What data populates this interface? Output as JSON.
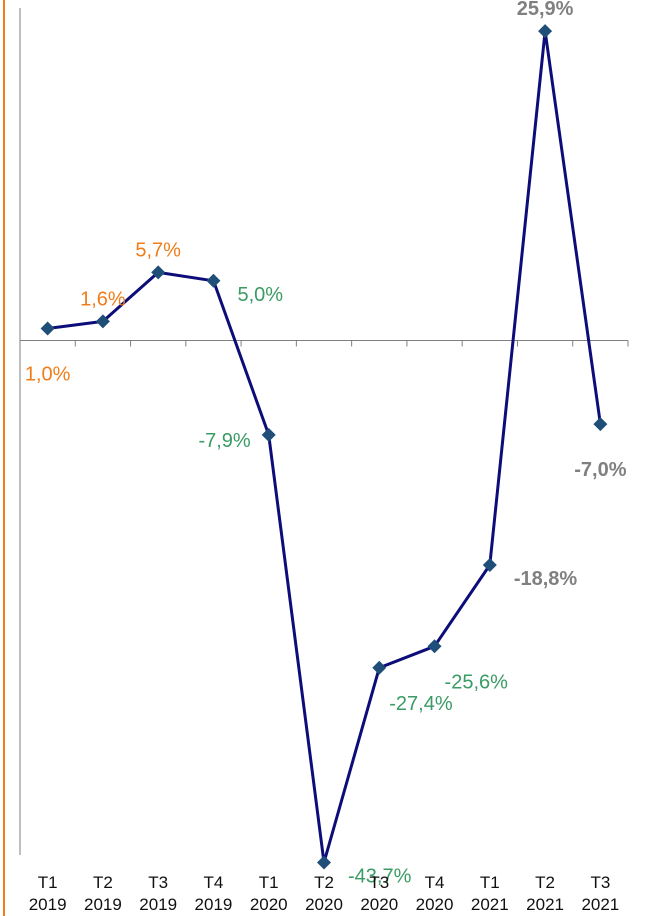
{
  "chart_data": {
    "type": "line",
    "categories": [
      [
        "T1",
        "2019"
      ],
      [
        "T2",
        "2019"
      ],
      [
        "T3",
        "2019"
      ],
      [
        "T4",
        "2019"
      ],
      [
        "T1",
        "2020"
      ],
      [
        "T2",
        "2020"
      ],
      [
        "T3",
        "2020"
      ],
      [
        "T4",
        "2020"
      ],
      [
        "T1",
        "2021"
      ],
      [
        "T2",
        "2021"
      ],
      [
        "T3",
        "2021"
      ]
    ],
    "series": [
      {
        "values": [
          1.0,
          1.6,
          5.7,
          5.0,
          -7.9,
          -43.7,
          -27.4,
          -25.6,
          -18.8,
          25.9,
          -7.0
        ],
        "labels": [
          "1,0%",
          "1,6%",
          "5,7%",
          "5,0%",
          "-7,9%",
          "-43,7%",
          "-27,4%",
          "-25,6%",
          "-18,8%",
          "25,9%",
          "-7,0%"
        ],
        "label_colors": [
          "#f07d19",
          "#f07d19",
          "#f07d19",
          "#3a9b64",
          "#3a9b64",
          "#3a9b64",
          "#3a9b64",
          "#3a9b64",
          "#808080",
          "#808080",
          "#808080"
        ],
        "label_bold": [
          false,
          false,
          false,
          false,
          false,
          false,
          false,
          false,
          true,
          true,
          true
        ],
        "label_positions": [
          "below",
          "above",
          "above",
          "right",
          "left",
          "right",
          "below-right",
          "below-right",
          "right",
          "above",
          "below"
        ]
      }
    ],
    "ylim": [
      -44.5,
      27.5
    ],
    "xlabel": "",
    "ylabel": "",
    "grid": false,
    "colors": {
      "line": "#0d0d7a",
      "marker": "#1f4e79",
      "axis": "#7f7f7f",
      "left_border": "#f07d19"
    }
  }
}
